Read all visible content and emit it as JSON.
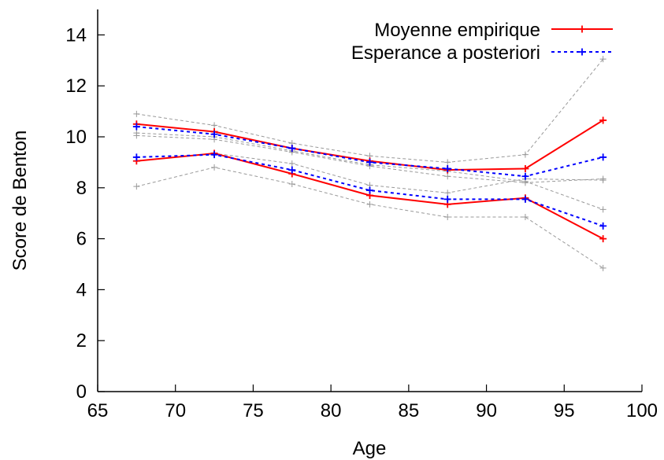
{
  "chart_data": {
    "type": "line",
    "title": "",
    "xlabel": "Age",
    "ylabel": "Score de Benton",
    "xlim": [
      65,
      100
    ],
    "ylim": [
      0,
      15
    ],
    "xticks": [
      65,
      70,
      75,
      80,
      85,
      90,
      95,
      100
    ],
    "yticks": [
      0,
      2,
      4,
      6,
      8,
      10,
      12,
      14
    ],
    "x": [
      67.5,
      72.5,
      77.5,
      82.5,
      87.5,
      92.5,
      97.5
    ],
    "legend_position": "top-right",
    "grid": false,
    "series": [
      {
        "name": "Moyenne empirique",
        "style": "solid",
        "color": "#ff0000",
        "values": [
          10.5,
          10.2,
          9.55,
          9.05,
          8.7,
          8.75,
          10.65
        ]
      },
      {
        "name": "Moyenne empirique",
        "style": "solid",
        "color": "#ff0000",
        "values": [
          9.05,
          9.35,
          8.55,
          7.7,
          7.35,
          7.6,
          6.0
        ]
      },
      {
        "name": "Esperance a posteriori",
        "style": "dotted",
        "color": "#0000ff",
        "values": [
          10.4,
          10.1,
          9.55,
          9.0,
          8.75,
          8.45,
          9.2
        ]
      },
      {
        "name": "Esperance a posteriori",
        "style": "dotted",
        "color": "#0000ff",
        "values": [
          9.2,
          9.3,
          8.7,
          7.9,
          7.55,
          7.55,
          6.5
        ]
      },
      {
        "style": "dashed",
        "color": "#999999",
        "values": [
          10.9,
          10.45,
          9.75,
          9.25,
          9.0,
          9.3,
          13.05
        ]
      },
      {
        "style": "dashed",
        "color": "#999999",
        "values": [
          10.15,
          10.0,
          9.45,
          8.9,
          8.65,
          8.25,
          7.15
        ]
      },
      {
        "style": "dashed",
        "color": "#999999",
        "values": [
          10.05,
          9.9,
          9.4,
          8.85,
          8.45,
          8.2,
          8.35
        ]
      },
      {
        "style": "dashed",
        "color": "#999999",
        "values": [
          9.05,
          9.35,
          8.95,
          8.1,
          7.8,
          8.35,
          8.3
        ]
      },
      {
        "style": "dashed",
        "color": "#999999",
        "values": [
          8.05,
          8.8,
          8.15,
          7.35,
          6.85,
          6.85,
          4.85
        ]
      }
    ],
    "legend": [
      {
        "label": "Moyenne empirique",
        "color": "#ff0000",
        "style": "solid"
      },
      {
        "label": "Esperance a posteriori",
        "color": "#0000ff",
        "style": "dotted"
      }
    ]
  }
}
